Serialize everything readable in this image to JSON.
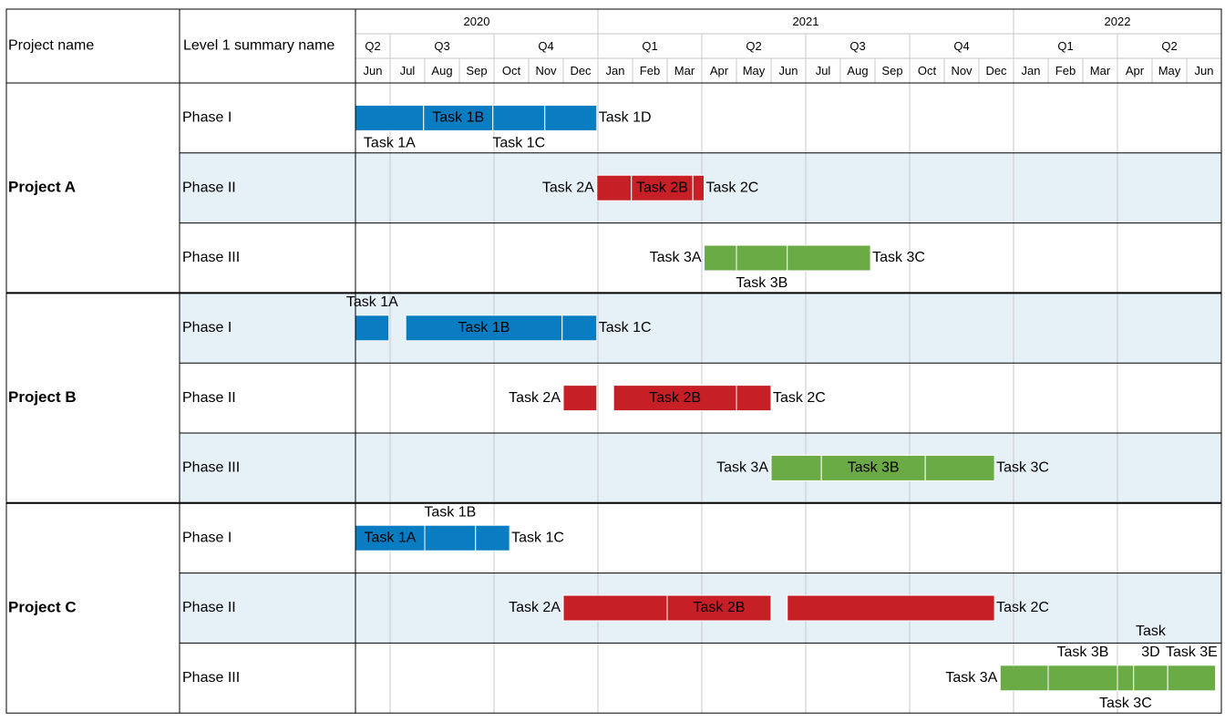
{
  "headers": {
    "project_col": "Project name",
    "summary_col": "Level 1 summary name"
  },
  "timeline": {
    "years": [
      {
        "label": "2020",
        "months": 7
      },
      {
        "label": "2021",
        "months": 12
      },
      {
        "label": "2022",
        "months": 6
      }
    ],
    "quarters": [
      {
        "label": "Q2",
        "months": 1
      },
      {
        "label": "Q3",
        "months": 3
      },
      {
        "label": "Q4",
        "months": 3
      },
      {
        "label": "Q1",
        "months": 3
      },
      {
        "label": "Q2",
        "months": 3
      },
      {
        "label": "Q3",
        "months": 3
      },
      {
        "label": "Q4",
        "months": 3
      },
      {
        "label": "Q1",
        "months": 3
      },
      {
        "label": "Q2",
        "months": 3
      }
    ],
    "months": [
      "Jun",
      "Jul",
      "Aug",
      "Sep",
      "Oct",
      "Nov",
      "Dec",
      "Jan",
      "Feb",
      "Mar",
      "Apr",
      "May",
      "Jun",
      "Jul",
      "Aug",
      "Sep",
      "Oct",
      "Nov",
      "Dec",
      "Jan",
      "Feb",
      "Mar",
      "Apr",
      "May",
      "Jun"
    ]
  },
  "colors": {
    "phase1": "#0a7dc2",
    "phase2": "#c61f25",
    "phase3": "#6aab45",
    "shade": "#e6f0f7",
    "grid": "#c8c8c8"
  },
  "chart_data": {
    "type": "gantt",
    "x_start": "2020-05-15",
    "x_end": "2022-06-30",
    "projects": [
      {
        "name": "Project A",
        "phases": [
          {
            "name": "Phase I",
            "color": "#0a7dc2",
            "tasks": [
              {
                "name": "Task 1A",
                "start": "2020-06-01",
                "end": "2020-07-31",
                "label_pos": "below"
              },
              {
                "name": "Task 1B",
                "start": "2020-07-31",
                "end": "2020-09-30",
                "label_pos": "inside"
              },
              {
                "name": "Task 1C",
                "start": "2020-09-30",
                "end": "2020-11-15",
                "label_pos": "below"
              },
              {
                "name": "Task 1D",
                "start": "2020-11-15",
                "end": "2020-12-31",
                "label_pos": "right"
              }
            ]
          },
          {
            "name": "Phase II",
            "color": "#c61f25",
            "tasks": [
              {
                "name": "Task 2A",
                "start": "2020-12-31",
                "end": "2021-01-31",
                "label_pos": "left"
              },
              {
                "name": "Task 2B",
                "start": "2021-01-31",
                "end": "2021-03-24",
                "label_pos": "inside"
              },
              {
                "name": "Task 2C",
                "start": "2021-03-24",
                "end": "2021-04-03",
                "label_pos": "right"
              }
            ]
          },
          {
            "name": "Phase III",
            "color": "#6aab45",
            "tasks": [
              {
                "name": "Task 3A",
                "start": "2021-04-03",
                "end": "2021-05-01",
                "label_pos": "left"
              },
              {
                "name": "Task 3B",
                "start": "2021-05-01",
                "end": "2021-06-15",
                "label_pos": "below"
              },
              {
                "name": "Task 3C",
                "start": "2021-06-15",
                "end": "2021-08-28",
                "label_pos": "right"
              }
            ]
          }
        ]
      },
      {
        "name": "Project B",
        "phases": [
          {
            "name": "Phase I",
            "color": "#0a7dc2",
            "tasks": [
              {
                "name": "Task 1A",
                "start": "2020-06-01",
                "end": "2020-06-30",
                "label_pos": "above"
              },
              {
                "name": "Task 1B",
                "start": "2020-07-15",
                "end": "2020-11-30",
                "label_pos": "inside"
              },
              {
                "name": "Task 1C",
                "start": "2020-11-30",
                "end": "2020-12-31",
                "label_pos": "right"
              }
            ]
          },
          {
            "name": "Phase II",
            "color": "#c61f25",
            "tasks": [
              {
                "name": "Task 2A",
                "start": "2020-12-01",
                "end": "2020-12-31",
                "label_pos": "left"
              },
              {
                "name": "Task 2B",
                "start": "2021-01-15",
                "end": "2021-05-01",
                "label_pos": "inside"
              },
              {
                "name": "Task 2C",
                "start": "2021-05-01",
                "end": "2021-06-01",
                "label_pos": "right"
              }
            ]
          },
          {
            "name": "Phase III",
            "color": "#6aab45",
            "tasks": [
              {
                "name": "Task 3A",
                "start": "2021-06-01",
                "end": "2021-07-15",
                "label_pos": "left"
              },
              {
                "name": "Task 3B",
                "start": "2021-07-15",
                "end": "2021-10-15",
                "label_pos": "inside"
              },
              {
                "name": "Task 3C",
                "start": "2021-10-15",
                "end": "2021-12-15",
                "label_pos": "right"
              }
            ]
          }
        ]
      },
      {
        "name": "Project C",
        "phases": [
          {
            "name": "Phase I",
            "color": "#0a7dc2",
            "tasks": [
              {
                "name": "Task 1A",
                "start": "2020-06-01",
                "end": "2020-08-01",
                "label_pos": "inside"
              },
              {
                "name": "Task 1B",
                "start": "2020-08-01",
                "end": "2020-09-15",
                "label_pos": "above"
              },
              {
                "name": "Task 1C",
                "start": "2020-09-15",
                "end": "2020-10-15",
                "label_pos": "right"
              }
            ]
          },
          {
            "name": "Phase II",
            "color": "#c61f25",
            "tasks": [
              {
                "name": "Task 2A",
                "start": "2020-12-01",
                "end": "2021-03-01",
                "label_pos": "left"
              },
              {
                "name": "Task 2B",
                "start": "2021-03-01",
                "end": "2021-06-01",
                "label_pos": "inside"
              },
              {
                "name": "Task 2C",
                "start": "2021-06-15",
                "end": "2021-12-15",
                "label_pos": "right"
              }
            ]
          },
          {
            "name": "Phase III",
            "color": "#6aab45",
            "tasks": [
              {
                "name": "Task 3A",
                "start": "2021-12-20",
                "end": "2022-02-01",
                "label_pos": "left"
              },
              {
                "name": "Task 3B",
                "start": "2022-02-01",
                "end": "2022-04-01",
                "label_pos": "above"
              },
              {
                "name": "Task 3C",
                "start": "2022-04-01",
                "end": "2022-04-15",
                "label_pos": "below"
              },
              {
                "name": "Task 3D",
                "start": "2022-04-15",
                "end": "2022-05-15",
                "label_pos": "above-stacked",
                "label_lines": [
                  "Task",
                  "3D"
                ]
              },
              {
                "name": "Task 3E",
                "start": "2022-05-15",
                "end": "2022-06-26",
                "label_pos": "above"
              }
            ]
          }
        ]
      }
    ]
  }
}
